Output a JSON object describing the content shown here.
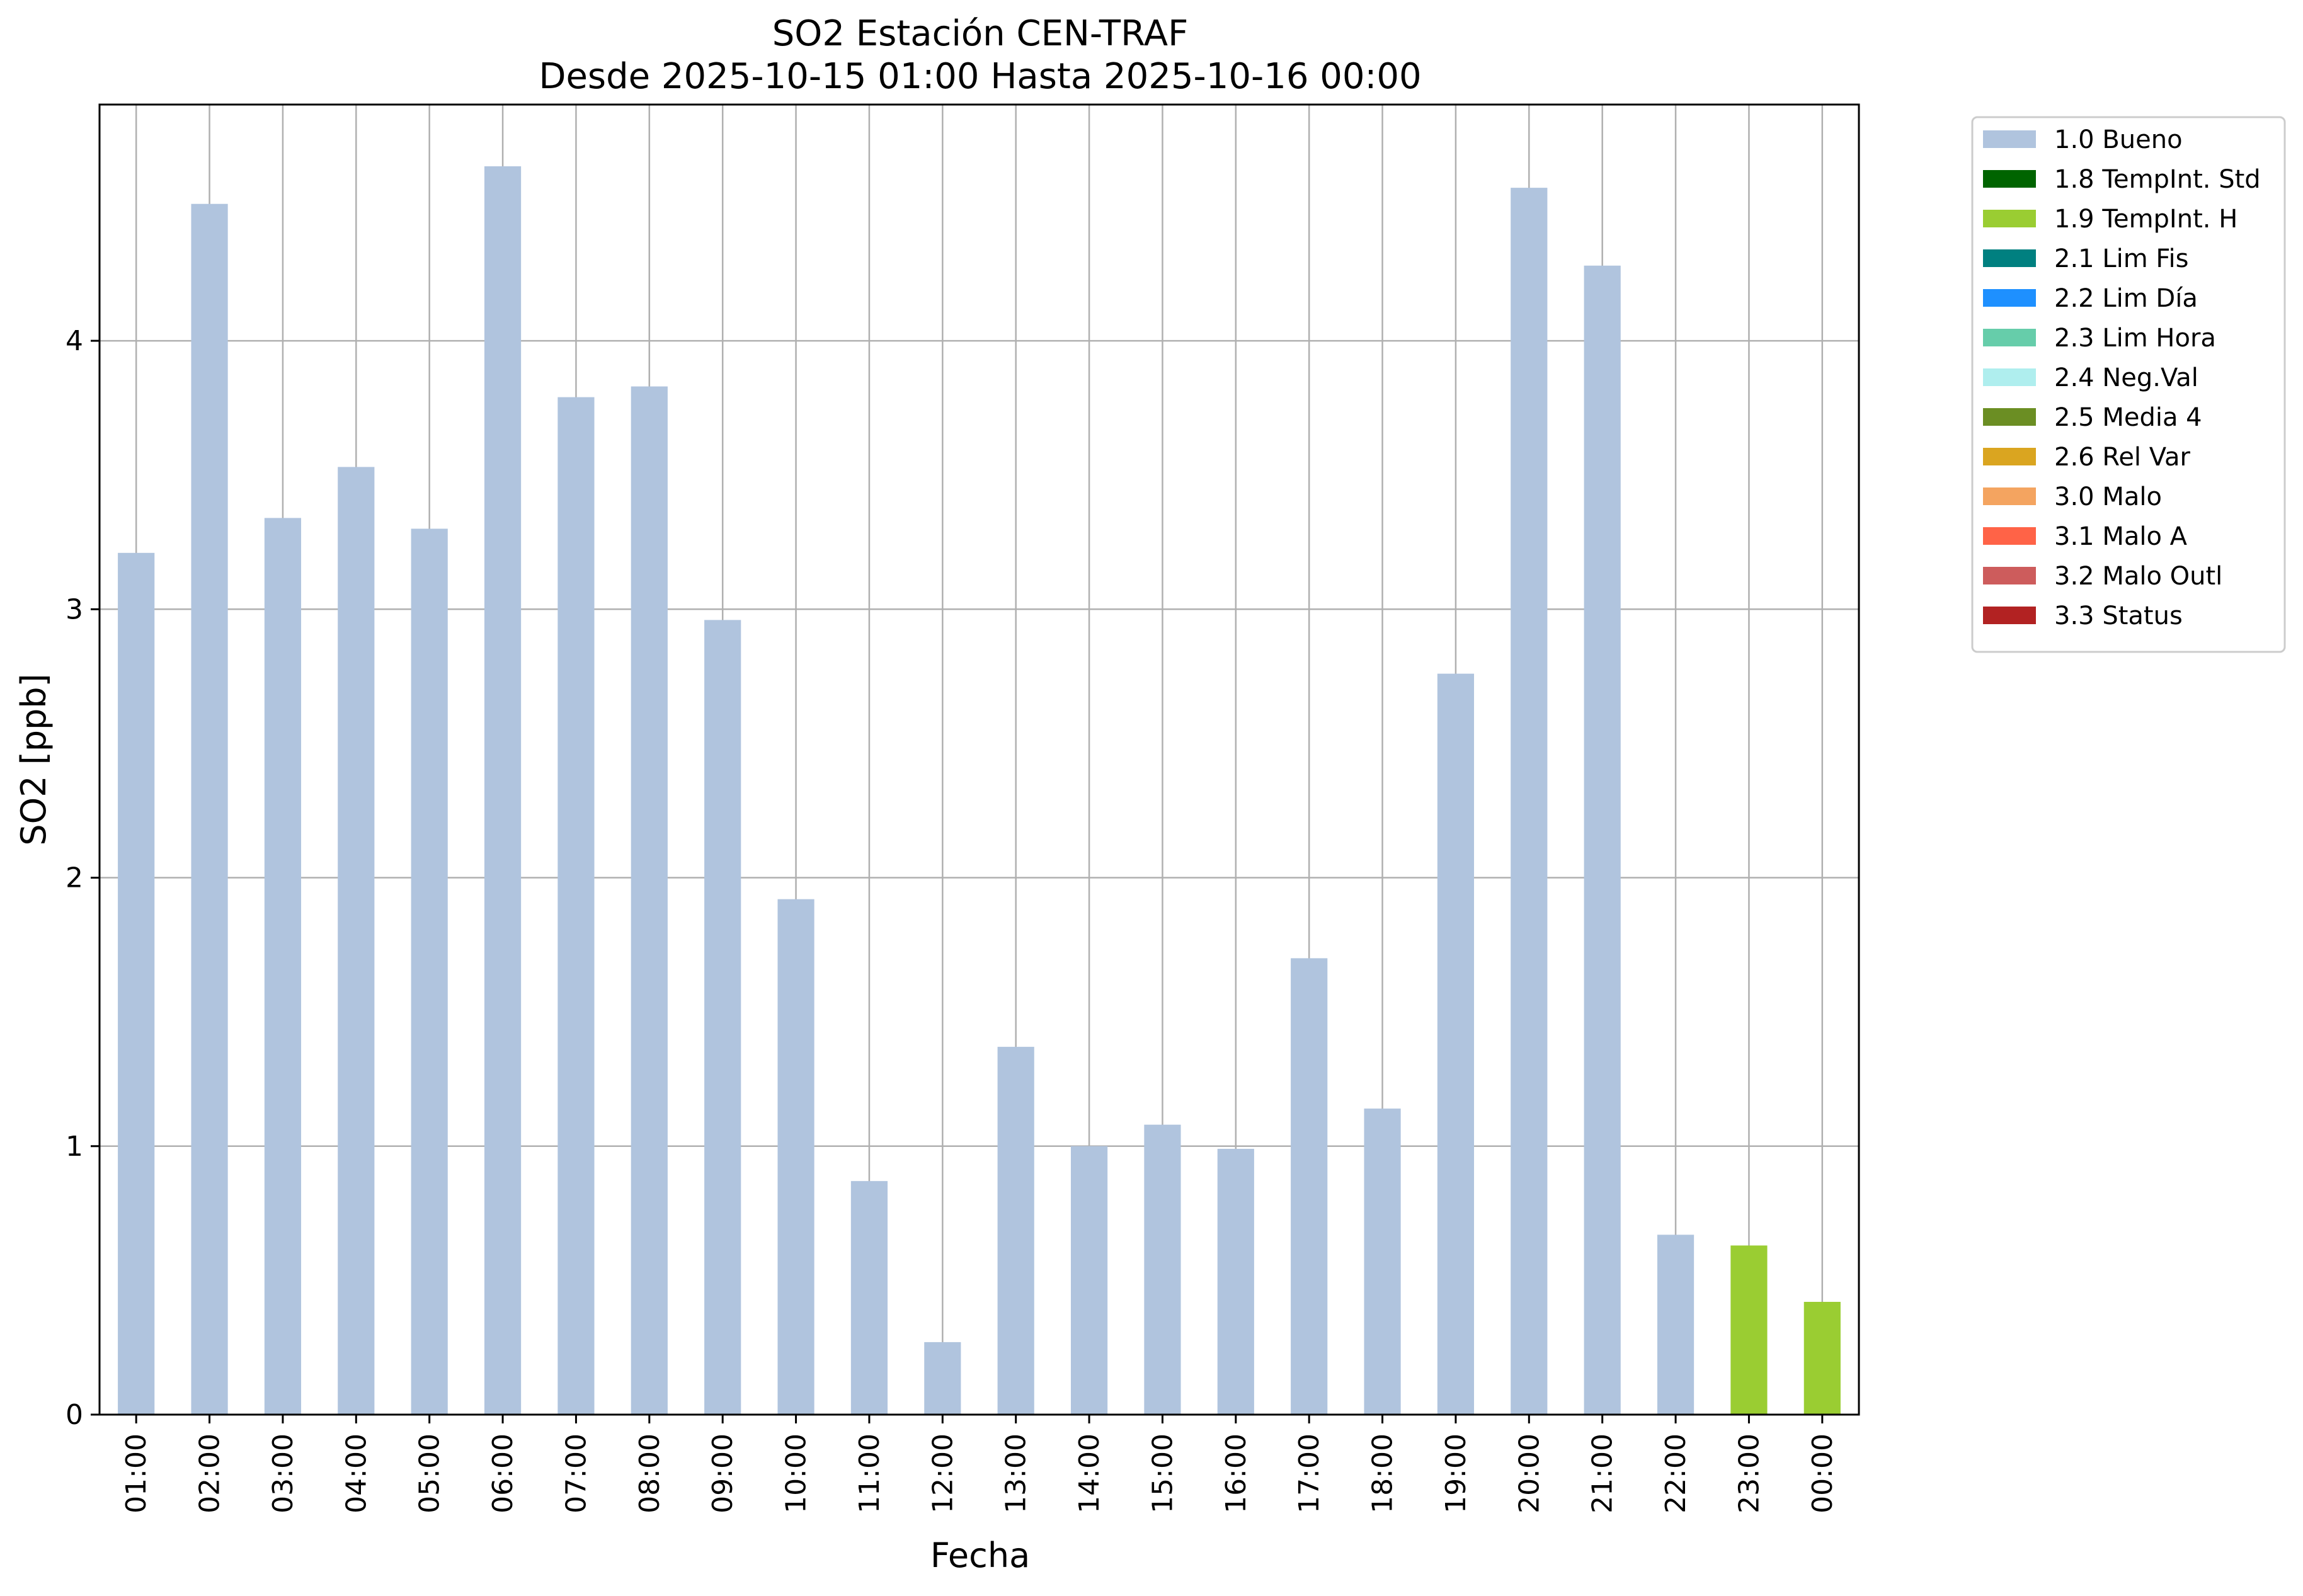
{
  "chart_data": {
    "type": "bar",
    "title": "SO2 Estación CEN-TRAF",
    "subtitle": "Desde 2025-10-15 01:00 Hasta 2025-10-16 00:00",
    "xlabel": "Fecha",
    "ylabel": "SO2 [ppb]",
    "ylim": [
      0,
      4.88
    ],
    "yticks": [
      "0",
      "1",
      "2",
      "3",
      "4"
    ],
    "grid": true,
    "legend_position": "outside-right-top",
    "categories": [
      "01:00",
      "02:00",
      "03:00",
      "04:00",
      "05:00",
      "06:00",
      "07:00",
      "08:00",
      "09:00",
      "10:00",
      "11:00",
      "12:00",
      "13:00",
      "14:00",
      "15:00",
      "16:00",
      "17:00",
      "18:00",
      "19:00",
      "20:00",
      "21:00",
      "22:00",
      "23:00",
      "00:00"
    ],
    "values": [
      3.21,
      4.51,
      3.34,
      3.53,
      3.3,
      4.65,
      3.79,
      3.83,
      2.96,
      1.92,
      0.87,
      0.27,
      1.37,
      1.0,
      1.08,
      0.99,
      1.7,
      1.14,
      2.76,
      4.57,
      4.28,
      0.67,
      0.63,
      0.42
    ],
    "flags": [
      "1.0 Bueno",
      "1.0 Bueno",
      "1.0 Bueno",
      "1.0 Bueno",
      "1.0 Bueno",
      "1.0 Bueno",
      "1.0 Bueno",
      "1.0 Bueno",
      "1.0 Bueno",
      "1.0 Bueno",
      "1.0 Bueno",
      "1.0 Bueno",
      "1.0 Bueno",
      "1.0 Bueno",
      "1.0 Bueno",
      "1.0 Bueno",
      "1.0 Bueno",
      "1.0 Bueno",
      "1.0 Bueno",
      "1.0 Bueno",
      "1.0 Bueno",
      "1.0 Bueno",
      "1.9 TempInt. H",
      "1.9 TempInt. H"
    ],
    "legend": [
      {
        "label": "1.0 Bueno",
        "color": "#b0c4de"
      },
      {
        "label": "1.8 TempInt. Std",
        "color": "#006400"
      },
      {
        "label": "1.9 TempInt. H",
        "color": "#9acd32"
      },
      {
        "label": "2.1 Lim Fis",
        "color": "#008080"
      },
      {
        "label": "2.2 Lim Día",
        "color": "#1e90ff"
      },
      {
        "label": "2.3 Lim Hora",
        "color": "#66cdaa"
      },
      {
        "label": "2.4 Neg.Val",
        "color": "#afeeee"
      },
      {
        "label": "2.5 Media 4",
        "color": "#6b8e23"
      },
      {
        "label": "2.6 Rel Var",
        "color": "#daa520"
      },
      {
        "label": "3.0 Malo",
        "color": "#f4a460"
      },
      {
        "label": "3.1 Malo A",
        "color": "#ff6347"
      },
      {
        "label": "3.2 Malo Outl",
        "color": "#cd5c5c"
      },
      {
        "label": "3.3 Status",
        "color": "#b22222"
      }
    ]
  }
}
